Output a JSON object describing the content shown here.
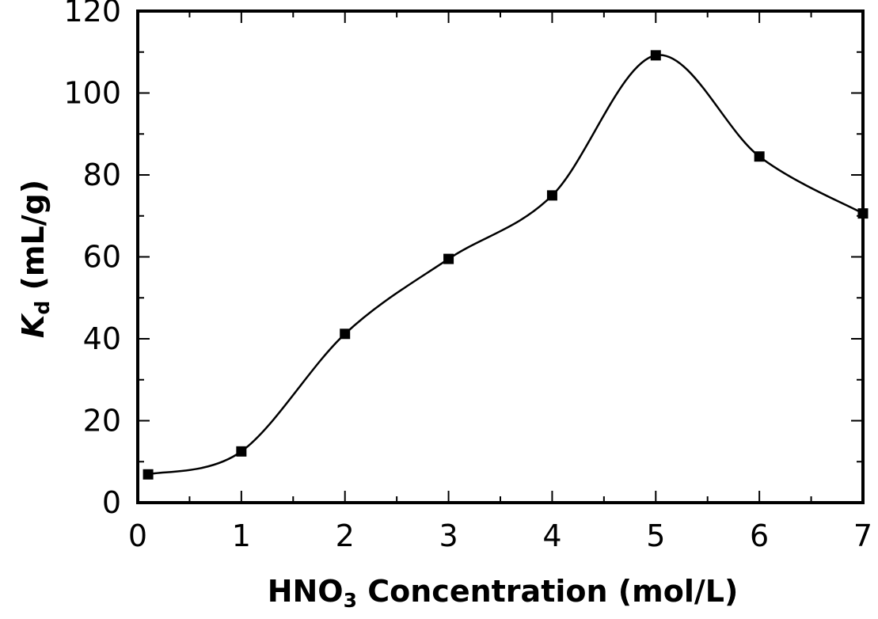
{
  "chart_data": {
    "type": "line",
    "xlabel": {
      "prefix": "HNO",
      "subscript": "3",
      "suffix": " Concentration  (mol/L)"
    },
    "ylabel": {
      "symbol": "K",
      "subscript": "d",
      "suffix": " (mL/g)"
    },
    "xlim": [
      0,
      7
    ],
    "ylim": [
      0,
      120
    ],
    "x_ticks": [
      0,
      1,
      2,
      3,
      4,
      5,
      6,
      7
    ],
    "x_tick_labels": [
      "0",
      "1",
      "2",
      "3",
      "4",
      "5",
      "6",
      "7"
    ],
    "x_minor_ticks": [
      0.5,
      1.5,
      2.5,
      3.5,
      4.5,
      5.5,
      6.5
    ],
    "y_ticks": [
      0,
      20,
      40,
      60,
      80,
      100,
      120
    ],
    "y_tick_labels": [
      "0",
      "20",
      "40",
      "60",
      "80",
      "100",
      "120"
    ],
    "y_minor_ticks": [
      10,
      30,
      50,
      70,
      90,
      110
    ],
    "grid": false,
    "legend": "none",
    "marker": "square",
    "line_style": "smooth",
    "color": "#000000",
    "series": [
      {
        "x": [
          0.1,
          1,
          2,
          3,
          4,
          5,
          6,
          7
        ],
        "y": [
          6.9,
          12.5,
          41.2,
          59.5,
          75,
          109.2,
          84.5,
          70.6
        ]
      }
    ]
  }
}
